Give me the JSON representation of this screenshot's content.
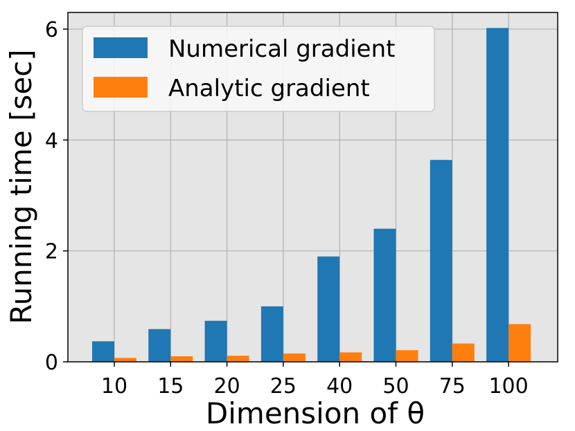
{
  "chart_data": {
    "type": "bar",
    "categories": [
      "10",
      "15",
      "20",
      "25",
      "40",
      "50",
      "75",
      "100"
    ],
    "series": [
      {
        "name": "Numerical gradient",
        "color": "#1f77b4",
        "values": [
          0.37,
          0.59,
          0.74,
          1.0,
          1.9,
          2.4,
          3.64,
          6.02
        ]
      },
      {
        "name": "Analytic gradient",
        "color": "#ff7f0e",
        "values": [
          0.07,
          0.1,
          0.11,
          0.15,
          0.17,
          0.21,
          0.33,
          0.68
        ]
      }
    ],
    "xlabel": "Dimension of θ",
    "ylabel": "Running time [sec]",
    "ylim": [
      0,
      6.3
    ],
    "yticks": [
      0,
      2,
      4,
      6
    ],
    "grid": true,
    "legend_position": "top-left",
    "background_color": "#e5e5e5"
  }
}
